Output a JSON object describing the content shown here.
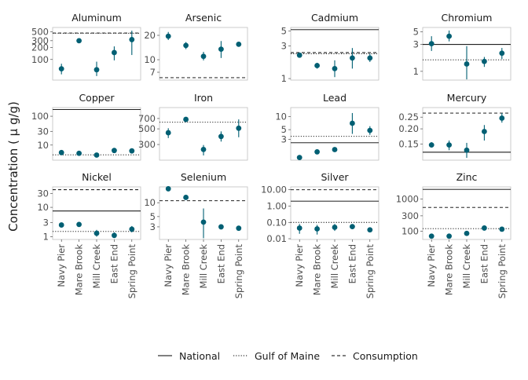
{
  "y_axis_label": "Concentration ( µ g/g)",
  "legend": {
    "items": [
      {
        "label": "National",
        "dash": "solid"
      },
      {
        "label": "Gulf of Maine",
        "dash": "dotted"
      },
      {
        "label": "Consumption",
        "dash": "dashed"
      }
    ]
  },
  "colors": {
    "point": "#005f73",
    "reference": "#000000",
    "panel_border": "#bfbfbf",
    "strip_text": "#1a1a1a",
    "tick_text": "#4d4d4d"
  },
  "chart_data": {
    "type": "scatter",
    "layout": "facet 3x4, point estimates with vertical error bars, log10 y scales",
    "categories": [
      "Navy Pier",
      "Mare Brook",
      "Mill Creek",
      "East End",
      "Spring Point"
    ],
    "panels": [
      {
        "title": "Aluminum",
        "ylim": [
          30,
          650
        ],
        "yticks": [
          100,
          200,
          300,
          500
        ],
        "tick_labels": [
          "100",
          "200",
          "300",
          "500"
        ],
        "values": [
          58,
          300,
          55,
          150,
          320
        ],
        "lower": [
          42,
          280,
          38,
          95,
          130
        ],
        "upper": [
          78,
          320,
          88,
          215,
          540
        ],
        "lines": {
          "dotted": 465,
          "dashed": 470,
          "solid": null
        }
      },
      {
        "title": "Arsenic",
        "ylim": [
          5.6,
          25
        ],
        "yticks": [
          7,
          10,
          20
        ],
        "tick_labels": [
          "7",
          "10",
          "20"
        ],
        "values": [
          19.5,
          15,
          11,
          13.5,
          15.5
        ],
        "lower": [
          17.5,
          13.5,
          9.8,
          10.5,
          14.5
        ],
        "upper": [
          22,
          16.5,
          12.5,
          17,
          16.5
        ],
        "lines": {
          "dotted": null,
          "dashed": 6.0,
          "solid": null
        }
      },
      {
        "title": "Cadmium",
        "ylim": [
          0.95,
          5.6
        ],
        "yticks": [
          1,
          3,
          5
        ],
        "tick_labels": [
          "1",
          "3",
          "5"
        ],
        "values": [
          2.2,
          1.55,
          1.4,
          2.0,
          2.0
        ],
        "lower": [
          2.05,
          1.4,
          1.05,
          1.4,
          1.75
        ],
        "upper": [
          2.4,
          1.7,
          1.85,
          2.8,
          2.3
        ],
        "lines": {
          "dotted": 2.3,
          "dashed": 2.4,
          "solid": 5.2
        }
      },
      {
        "title": "Chromium",
        "ylim": [
          0.7,
          6
        ],
        "yticks": [
          1,
          3,
          5
        ],
        "tick_labels": [
          "1",
          "3",
          "5"
        ],
        "values": [
          3.1,
          4.2,
          1.35,
          1.5,
          2.1
        ],
        "lower": [
          2.3,
          3.4,
          0.72,
          1.2,
          1.65
        ],
        "upper": [
          4.2,
          5.3,
          2.8,
          1.8,
          2.6
        ],
        "lines": {
          "dotted": 1.6,
          "dashed": null,
          "solid": 3.0
        }
      },
      {
        "title": "Copper",
        "ylim": [
          3,
          200
        ],
        "yticks": [
          10,
          30,
          100
        ],
        "tick_labels": [
          "10",
          "30",
          "100"
        ],
        "values": [
          5.5,
          5.2,
          4.5,
          6.5,
          6.3
        ],
        "lower": [
          5,
          4.8,
          4.0,
          6,
          5.8
        ],
        "upper": [
          6,
          5.7,
          5.0,
          7.0,
          6.9
        ],
        "lines": {
          "dotted": 4.6,
          "dashed": null,
          "solid": 170
        }
      },
      {
        "title": "Iron",
        "ylim": [
          180,
          1000
        ],
        "yticks": [
          300,
          500,
          700
        ],
        "tick_labels": [
          "300",
          "500",
          "700"
        ],
        "values": [
          440,
          680,
          255,
          390,
          510
        ],
        "lower": [
          370,
          650,
          210,
          330,
          380
        ],
        "upper": [
          510,
          710,
          295,
          460,
          680
        ],
        "lines": {
          "dotted": 620,
          "dashed": null,
          "solid": null
        }
      },
      {
        "title": "Lead",
        "ylim": [
          1.0,
          16
        ],
        "yticks": [
          3,
          5,
          10
        ],
        "tick_labels": [
          "3",
          "5",
          "10"
        ],
        "values": [
          1.15,
          1.55,
          1.75,
          7.0,
          4.8
        ],
        "lower": [
          1.1,
          1.5,
          1.6,
          4.0,
          3.8
        ],
        "upper": [
          1.2,
          1.65,
          1.9,
          12,
          6.0
        ],
        "lines": {
          "dotted": 3.5,
          "dashed": null,
          "solid": 2.5
        }
      },
      {
        "title": "Mercury",
        "ylim": [
          0.11,
          0.3
        ],
        "yticks": [
          0.15,
          0.2,
          0.25
        ],
        "tick_labels": [
          "0.15",
          "0.20",
          "0.25"
        ],
        "values": [
          0.147,
          0.147,
          0.133,
          0.19,
          0.245
        ],
        "lower": [
          0.14,
          0.133,
          0.115,
          0.16,
          0.225
        ],
        "upper": [
          0.155,
          0.16,
          0.153,
          0.215,
          0.27
        ],
        "lines": {
          "dotted": null,
          "dashed": 0.27,
          "solid": 0.128
        }
      },
      {
        "title": "Nickel",
        "ylim": [
          0.8,
          50
        ],
        "yticks": [
          1,
          3,
          10,
          30
        ],
        "tick_labels": [
          "1",
          "3",
          "10",
          "30"
        ],
        "values": [
          2.5,
          2.6,
          1.3,
          1.1,
          1.8
        ],
        "lower": [
          2.3,
          2.4,
          1.0,
          0.9,
          1.4
        ],
        "upper": [
          2.7,
          2.8,
          1.7,
          1.4,
          2.3
        ],
        "lines": {
          "dotted": 1.5,
          "dashed": 40,
          "solid": 7.5
        }
      },
      {
        "title": "Selenium",
        "ylim": [
          1.6,
          22
        ],
        "yticks": [
          3,
          5,
          10
        ],
        "tick_labels": [
          "3",
          "5",
          "10"
        ],
        "values": [
          20,
          13,
          3.8,
          3.0,
          2.8
        ],
        "lower": [
          19,
          12,
          1.7,
          2.7,
          2.6
        ],
        "upper": [
          21.5,
          14,
          7.5,
          3.3,
          3.1
        ],
        "lines": {
          "dotted": null,
          "dashed": 11,
          "solid": null
        }
      },
      {
        "title": "Silver",
        "ylim": [
          0.009,
          15
        ],
        "yticks": [
          0.01,
          0.1,
          1,
          10
        ],
        "tick_labels": [
          "0.01",
          "0.10",
          "1.00",
          "10.00"
        ],
        "values": [
          0.045,
          0.04,
          0.05,
          0.055,
          0.035
        ],
        "lower": [
          0.02,
          0.018,
          0.03,
          0.045,
          0.028
        ],
        "upper": [
          0.08,
          0.07,
          0.08,
          0.065,
          0.045
        ],
        "lines": {
          "dotted": 0.1,
          "dashed": 10,
          "solid": 2.0
        }
      },
      {
        "title": "Zinc",
        "ylim": [
          55,
          2400
        ],
        "yticks": [
          100,
          300,
          1000
        ],
        "tick_labels": [
          "100",
          "300",
          "1000"
        ],
        "values": [
          70,
          70,
          85,
          125,
          115
        ],
        "lower": [
          66,
          66,
          80,
          115,
          105
        ],
        "upper": [
          74,
          74,
          91,
          135,
          128
        ],
        "lines": {
          "dotted": 120,
          "dashed": 550,
          "solid": 2000
        }
      }
    ]
  }
}
